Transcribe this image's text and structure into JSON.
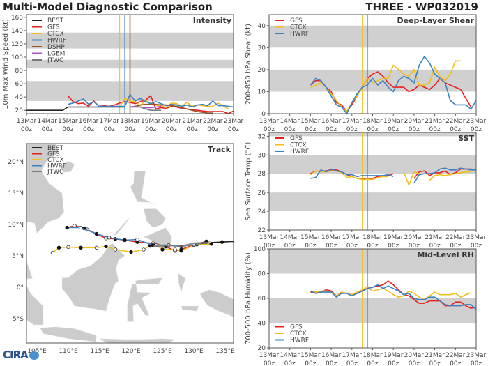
{
  "header": {
    "title": "Multi-Model Diagnostic Comparison",
    "storm": "THREE - WP032019"
  },
  "logo": "CIRA",
  "colors": {
    "BEST": "#222222",
    "GFS": "#e8201f",
    "CTCX": "#f2be1a",
    "HWRF": "#3b80c2",
    "DSHP": "#a0522d",
    "LGEM": "#b24fc4",
    "JTWC": "#7a7a7a",
    "band": "#d0d0d0",
    "land": "#cccccc"
  },
  "x_ticks": [
    "13Mar\n00z",
    "14Mar\n00z",
    "15Mar\n00z",
    "16Mar\n00z",
    "17Mar\n00z",
    "18Mar\n00z",
    "19Mar\n00z",
    "20Mar\n00z",
    "21Mar\n00z",
    "22Mar\n00z",
    "23Mar\n00z"
  ],
  "chart_data": [
    {
      "type": "line",
      "title": "Intensity",
      "ylabel": "10m Max Wind Speed (kt)",
      "ylim": [
        15,
        164
      ],
      "yticks": [
        20,
        40,
        60,
        80,
        100,
        120,
        140,
        160
      ],
      "bands": [
        [
          34,
          64
        ],
        [
          83,
          96
        ],
        [
          113,
          137
        ]
      ],
      "xlim": [
        "13Mar 00z",
        "23Mar 00z"
      ],
      "legend": "top-left",
      "interval_hours": 6,
      "markers": [
        {
          "name": "CTCX",
          "time": "17Mar 12z"
        },
        {
          "name": "HWRF",
          "time": "17Mar 18z"
        },
        {
          "name": "DSHP",
          "time": "18Mar 00z"
        }
      ],
      "series": [
        {
          "name": "BEST",
          "start": "13Mar 00z",
          "values": [
            20,
            20,
            20,
            20,
            20,
            20,
            20,
            20,
            25,
            25,
            25,
            25,
            25,
            25,
            25,
            25,
            25,
            25,
            25,
            25
          ]
        },
        {
          "name": "GFS",
          "start": "15Mar 00z",
          "values": [
            42,
            33,
            30,
            31,
            26,
            34,
            26,
            27,
            26,
            28,
            31,
            33,
            32,
            30,
            33,
            35,
            42,
            22,
            24,
            23,
            26,
            25,
            23,
            22,
            21,
            20,
            19,
            18,
            18,
            18,
            18,
            15,
            19
          ]
        },
        {
          "name": "CTCX",
          "start": "17Mar 12z",
          "values": [
            25,
            38,
            34,
            33,
            27,
            35,
            30,
            28,
            27,
            24,
            31,
            30,
            26,
            32,
            26,
            28,
            27,
            26,
            26,
            31,
            27,
            22
          ]
        },
        {
          "name": "HWRF",
          "start": "15Mar 00z",
          "values": [
            29,
            31,
            34,
            37,
            29,
            33,
            26,
            26,
            26,
            26,
            26,
            26,
            44,
            34,
            38,
            33,
            30,
            33,
            30,
            27,
            29,
            28,
            26,
            28,
            25,
            28,
            29,
            27,
            34,
            27,
            27,
            26,
            25
          ]
        },
        {
          "name": "DSHP",
          "start": "18Mar 00z",
          "values": [
            25,
            26,
            28,
            29,
            29,
            29,
            28,
            28,
            27,
            26,
            24,
            22,
            20,
            18,
            17,
            16,
            16
          ]
        },
        {
          "name": "LGEM",
          "start": "18Mar 00z",
          "values": [
            25,
            26,
            25,
            24,
            24,
            25,
            26
          ]
        },
        {
          "name": "JTWC",
          "start": "18Mar 00z",
          "values": [
            25,
            25,
            25,
            22,
            20,
            20,
            20
          ]
        }
      ]
    },
    {
      "type": "line",
      "title": "Deep-Layer Shear",
      "ylabel": "200-850 hPa Shear (kt)",
      "ylim": [
        0,
        45
      ],
      "yticks": [
        0,
        10,
        20,
        30,
        40
      ],
      "bands": [
        [
          10,
          20
        ],
        [
          30,
          40
        ]
      ],
      "xlim": [
        "13Mar 00z",
        "23Mar 00z"
      ],
      "legend": "top-left",
      "interval_hours": 6,
      "markers": [
        {
          "name": "CTCX",
          "time": "17Mar 12z"
        },
        {
          "name": "HWRF",
          "time": "17Mar 18z"
        }
      ],
      "series": [
        {
          "name": "GFS",
          "start": "15Mar 00z",
          "values": [
            13,
            15,
            15,
            12,
            10,
            5,
            4,
            1,
            4,
            8,
            12,
            16,
            18,
            19,
            17,
            14,
            12,
            12,
            12,
            10,
            11,
            13,
            12,
            11,
            13,
            16,
            14,
            13,
            12,
            11,
            7,
            3
          ]
        },
        {
          "name": "CTCX",
          "start": "15Mar 00z",
          "values": [
            12,
            13,
            14,
            12,
            9,
            6,
            3,
            1,
            5,
            8,
            12,
            16,
            14,
            15,
            16,
            16,
            22,
            20,
            18,
            17,
            20,
            13,
            13,
            14,
            21,
            17,
            15,
            18,
            24,
            24
          ]
        },
        {
          "name": "HWRF",
          "start": "15Mar 00z",
          "values": [
            13,
            16,
            15,
            12,
            8,
            4,
            3,
            0,
            5,
            9,
            12,
            13,
            16,
            13,
            15,
            12,
            10,
            15,
            17,
            16,
            14,
            22,
            26,
            23,
            18,
            16,
            14,
            6,
            4,
            4,
            4,
            2,
            6
          ]
        }
      ]
    },
    {
      "type": "line",
      "title": "SST",
      "ylabel": "Sea Surface Temp (°C)",
      "ylim": [
        22,
        32.4
      ],
      "yticks": [
        22,
        24,
        26,
        28,
        30,
        32
      ],
      "bands": [
        [
          24,
          26
        ],
        [
          28,
          30
        ],
        [
          32,
          32.4
        ]
      ],
      "xlim": [
        "13Mar 00z",
        "23Mar 00z"
      ],
      "legend": "top-left",
      "interval_hours": 6,
      "markers": [
        {
          "name": "CTCX",
          "time": "17Mar 12z"
        },
        {
          "name": "HWRF",
          "time": "17Mar 18z"
        }
      ],
      "series": [
        {
          "name": "GFS",
          "start": "15Mar 00z",
          "values": [
            28.0,
            28.3,
            28.2,
            28.3,
            28.4,
            28.4,
            28.2,
            27.9,
            27.7,
            27.5,
            27.5,
            27.4,
            27.5,
            27.7,
            27.8,
            27.8,
            28.0,
            null,
            null,
            null,
            27.5,
            28.2,
            28.3,
            27.8,
            28.1,
            28.1,
            28.3,
            27.9,
            28.1,
            28.5,
            28.5,
            28.5,
            28.4
          ]
        },
        {
          "name": "CTCX",
          "start": "15Mar 00z",
          "values": [
            27.9,
            28.3,
            28.2,
            28.2,
            28.3,
            28.3,
            28.1,
            27.6,
            27.7,
            27.5,
            27.4,
            27.4,
            27.4,
            27.6,
            27.7,
            27.7,
            null,
            null,
            28.2,
            26.8,
            28.2,
            28.0,
            null,
            27.3,
            27.8,
            27.9,
            27.8,
            27.9,
            28.0,
            28.1,
            28.2,
            28.2
          ]
        },
        {
          "name": "HWRF",
          "start": "15Mar 00z",
          "values": [
            27.5,
            27.6,
            28.4,
            28.2,
            28.5,
            28.3,
            28.2,
            27.9,
            27.9,
            27.7,
            27.8,
            27.8,
            27.8,
            27.8,
            27.8,
            27.9,
            27.7,
            null,
            null,
            null,
            27.0,
            27.9,
            28.0,
            28.0,
            28.1,
            28.5,
            28.6,
            28.4,
            28.4,
            28.6,
            28.5,
            28.4,
            28.4
          ]
        }
      ]
    },
    {
      "type": "line",
      "title": "Mid-Level RH",
      "ylabel": "700-500 hPa Humidity (%)",
      "ylim": [
        20,
        100
      ],
      "yticks": [
        20,
        40,
        60,
        80,
        100
      ],
      "bands": [
        [
          40,
          60
        ],
        [
          80,
          100
        ]
      ],
      "xlim": [
        "13Mar 00z",
        "23Mar 00z"
      ],
      "legend": "bottom-left",
      "interval_hours": 6,
      "markers": [
        {
          "name": "CTCX",
          "time": "17Mar 12z"
        },
        {
          "name": "HWRF",
          "time": "17Mar 18z"
        }
      ],
      "series": [
        {
          "name": "GFS",
          "start": "15Mar 00z",
          "values": [
            65,
            65,
            65,
            67,
            66,
            62,
            65,
            64,
            63,
            64,
            66,
            69,
            69,
            70,
            71,
            74,
            71,
            67,
            63,
            62,
            59,
            56,
            56,
            58,
            58,
            58,
            54,
            54,
            57,
            57,
            54,
            52,
            53
          ]
        },
        {
          "name": "CTCX",
          "start": "15Mar 00z",
          "values": [
            66,
            65,
            66,
            66,
            65,
            62,
            65,
            64,
            63,
            65,
            67,
            69,
            66,
            67,
            68,
            66,
            63,
            61,
            62,
            66,
            64,
            61,
            59,
            62,
            65,
            63,
            63,
            63,
            64,
            61,
            63,
            64.5
          ]
        },
        {
          "name": "HWRF",
          "start": "15Mar 00z",
          "values": [
            66,
            64,
            65,
            65,
            65,
            61,
            64,
            64,
            62,
            64,
            66,
            68,
            69,
            71,
            68,
            70,
            68,
            66,
            63,
            64,
            60,
            59,
            59,
            61,
            61,
            58,
            55,
            54,
            54,
            54,
            55,
            55,
            51
          ]
        }
      ]
    },
    {
      "type": "map",
      "title": "Track",
      "legend": "top-left",
      "lon_ticks": [
        "105°E",
        "110°E",
        "115°E",
        "120°E",
        "125°E",
        "130°E",
        "135°E"
      ],
      "lat_ticks": [
        "20°N",
        "15°N",
        "10°N",
        "5°N",
        "0°",
        "5°S"
      ],
      "tracks": [
        {
          "name": "BEST",
          "points": [
            [
              130.5,
              6.8
            ],
            [
              132.5,
              7.1
            ],
            [
              134.5,
              7.2
            ],
            [
              136.5,
              7.3
            ]
          ]
        },
        {
          "name": "GFS",
          "points": [
            [
              132,
              7.3
            ],
            [
              130,
              6.8
            ],
            [
              128,
              6.0
            ],
            [
              127,
              5.8
            ],
            [
              125.5,
              6.5
            ],
            [
              123.5,
              7.0
            ],
            [
              121,
              7.2
            ],
            [
              119,
              7.5
            ],
            [
              117.5,
              7.7
            ],
            [
              116,
              7.8
            ],
            [
              114.5,
              8.5
            ],
            [
              113,
              9.2
            ],
            [
              112.5,
              9.4
            ],
            [
              111,
              9.8
            ],
            [
              109.8,
              9.5
            ]
          ]
        },
        {
          "name": "CTCX",
          "points": [
            [
              132.8,
              6.9
            ],
            [
              130,
              6.7
            ],
            [
              128,
              5.8
            ],
            [
              127,
              6.0
            ],
            [
              125,
              6.0
            ],
            [
              124,
              6.7
            ],
            [
              123,
              6.6
            ],
            [
              122,
              6.0
            ],
            [
              120,
              5.6
            ],
            [
              117.5,
              6.0
            ],
            [
              116,
              6.5
            ],
            [
              114.5,
              6.3
            ],
            [
              112,
              6.3
            ],
            [
              110,
              6.4
            ],
            [
              108.5,
              6.3
            ],
            [
              107.5,
              5.5
            ]
          ]
        },
        {
          "name": "HWRF",
          "points": [
            [
              132,
              7.2
            ],
            [
              130,
              6.8
            ],
            [
              128,
              6.5
            ],
            [
              126,
              6.7
            ],
            [
              123.5,
              6.7
            ],
            [
              121,
              7.6
            ],
            [
              119,
              7.5
            ],
            [
              116.5,
              7.9
            ],
            [
              114.5,
              8.5
            ],
            [
              112,
              9.5
            ],
            [
              109.8,
              9.5
            ]
          ]
        },
        {
          "name": "JTWC",
          "points": [
            [
              132.5,
              7.1
            ],
            [
              130,
              7.0
            ],
            [
              128,
              6.5
            ],
            [
              126,
              6.7
            ],
            [
              123.5,
              6.5
            ]
          ]
        }
      ]
    }
  ]
}
